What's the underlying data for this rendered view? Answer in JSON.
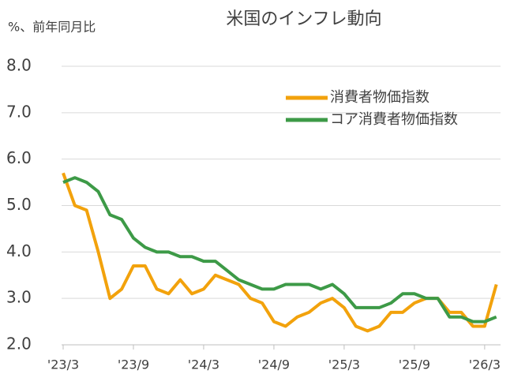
{
  "chart_data": {
    "type": "line",
    "title": "米国のインフレ動向",
    "y_label": "%、前年同月比",
    "categories": [
      "'23/3",
      null,
      null,
      null,
      null,
      null,
      "'23/9",
      null,
      null,
      null,
      null,
      null,
      "'24/3",
      null,
      null,
      null,
      null,
      null,
      "'24/9",
      null,
      null,
      null,
      null,
      null,
      "'25/3",
      null,
      null,
      null,
      null,
      null,
      "'25/9",
      null,
      null,
      null,
      null,
      null,
      "'26/3",
      null
    ],
    "series": [
      {
        "name": "消費者物価指数",
        "color": "#f2a20c",
        "values": [
          5.7,
          5.0,
          4.9,
          4.0,
          3.0,
          3.2,
          3.7,
          3.7,
          3.2,
          3.1,
          3.4,
          3.1,
          3.2,
          3.5,
          3.4,
          3.3,
          3.0,
          2.9,
          2.5,
          2.4,
          2.6,
          2.7,
          2.9,
          3.0,
          2.8,
          2.4,
          2.3,
          2.4,
          2.7,
          2.7,
          2.9,
          3.0,
          3.0,
          2.7,
          2.7,
          2.4,
          2.4,
          3.3
        ]
      },
      {
        "name": "コア消費者物価指数",
        "color": "#3d9a47",
        "values": [
          5.5,
          5.6,
          5.5,
          5.3,
          4.8,
          4.7,
          4.3,
          4.1,
          4.0,
          4.0,
          3.9,
          3.9,
          3.8,
          3.8,
          3.6,
          3.4,
          3.3,
          3.2,
          3.2,
          3.3,
          3.3,
          3.3,
          3.2,
          3.3,
          3.1,
          2.8,
          2.8,
          2.8,
          2.9,
          3.1,
          3.1,
          3.0,
          3.0,
          2.6,
          2.6,
          2.5,
          2.5,
          2.6
        ]
      }
    ],
    "ylim": [
      2,
      8
    ],
    "yticks": [
      {
        "value": 2,
        "label": "2.0"
      },
      {
        "value": 3,
        "label": "3.0"
      },
      {
        "value": 4,
        "label": "4.0"
      },
      {
        "value": 5,
        "label": "5.0"
      },
      {
        "value": 6,
        "label": "6.0"
      },
      {
        "value": 7,
        "label": "7.0"
      },
      {
        "value": 8,
        "label": "8.0"
      }
    ],
    "grid": true,
    "legend": "upper right"
  }
}
